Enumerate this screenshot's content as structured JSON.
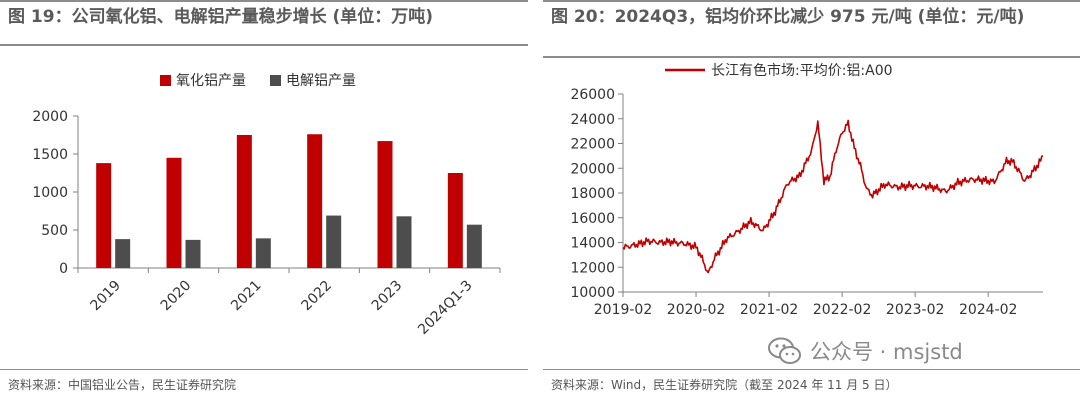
{
  "left": {
    "title": "图 19：公司氧化铝、电解铝产量稳步增长 (单位：万吨)",
    "source": "资料来源：中国铝业公告，民生证券研究院"
  },
  "right": {
    "title": "图 20：2024Q3，铝均价环比减少 975 元/吨 (单位：元/吨)",
    "source": "资料来源：Wind，民生证券研究院（截至 2024 年 11 月 5 日）"
  },
  "watermark": {
    "text": "公众号 · msjstd",
    "icon": "wechat-icon"
  },
  "chart_data": [
    {
      "type": "bar",
      "title": "",
      "categories": [
        "2019",
        "2020",
        "2021",
        "2022",
        "2023",
        "2024Q1-3"
      ],
      "series": [
        {
          "name": "氧化铝产量",
          "color": "#c00000",
          "values": [
            1380,
            1450,
            1750,
            1760,
            1670,
            1250
          ]
        },
        {
          "name": "电解铝产量",
          "color": "#4d4d4d",
          "values": [
            380,
            370,
            390,
            690,
            680,
            570
          ]
        }
      ],
      "ylim": [
        0,
        2000
      ],
      "yticks": [
        0,
        500,
        1000,
        1500,
        2000
      ],
      "legend": "top-center",
      "grid": false
    },
    {
      "type": "line",
      "title": "",
      "series_name": "长江有色市场:平均价:铝:A00",
      "color": "#c00000",
      "x": [
        "2019-02",
        "2019-04",
        "2019-06",
        "2019-08",
        "2019-10",
        "2019-12",
        "2020-02",
        "2020-03",
        "2020-04",
        "2020-05",
        "2020-07",
        "2020-09",
        "2020-11",
        "2021-01",
        "2021-03",
        "2021-05",
        "2021-07",
        "2021-09",
        "2021-10",
        "2021-11",
        "2021-12",
        "2022-01",
        "2022-02",
        "2022-03",
        "2022-04",
        "2022-05",
        "2022-06",
        "2022-07",
        "2022-09",
        "2022-11",
        "2023-01",
        "2023-03",
        "2023-05",
        "2023-07",
        "2023-09",
        "2023-11",
        "2024-01",
        "2024-03",
        "2024-05",
        "2024-06",
        "2024-08",
        "2024-09",
        "2024-11"
      ],
      "values": [
        13600,
        13900,
        14100,
        13900,
        14100,
        14000,
        13600,
        12600,
        11400,
        12700,
        14400,
        14900,
        15600,
        15000,
        16600,
        18700,
        19300,
        21500,
        23800,
        19000,
        19300,
        21400,
        22800,
        23600,
        21700,
        20300,
        18400,
        17800,
        18600,
        18500,
        18700,
        18500,
        18400,
        18200,
        18900,
        19000,
        19000,
        19000,
        20600,
        20500,
        18900,
        19500,
        21000
      ],
      "xticks": [
        "2019-02",
        "2020-02",
        "2021-02",
        "2022-02",
        "2023-02",
        "2024-02"
      ],
      "ylim": [
        10000,
        26000
      ],
      "yticks": [
        10000,
        12000,
        14000,
        16000,
        18000,
        20000,
        22000,
        24000,
        26000
      ],
      "legend": "top-center",
      "grid": false
    }
  ]
}
